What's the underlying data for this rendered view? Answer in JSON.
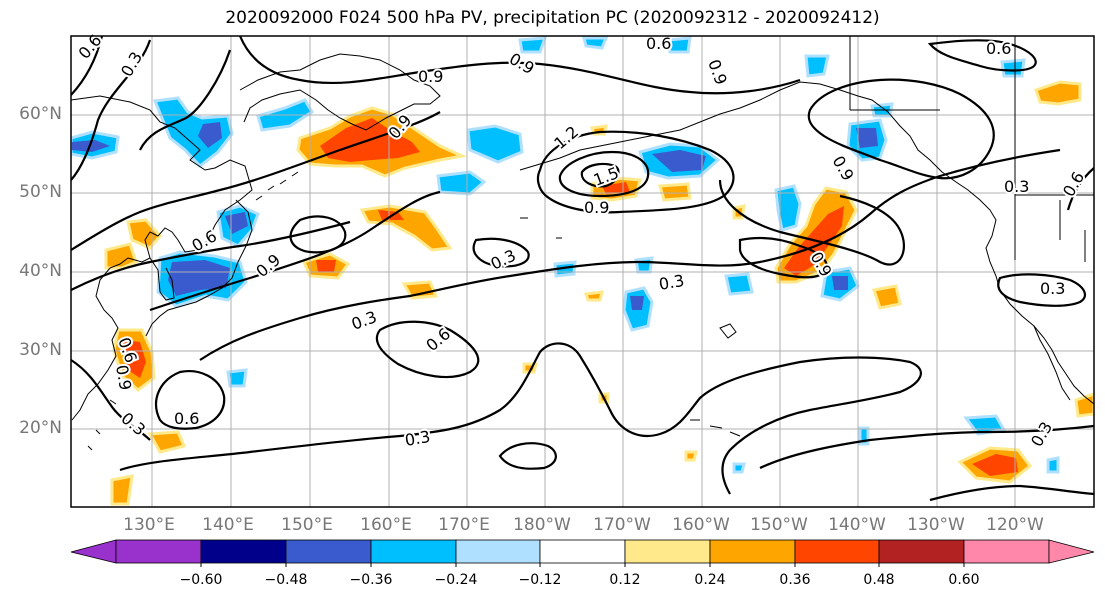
{
  "title": "2020092000 F024 500 hPa PV, precipitation PC (2020092312 - 2020092412)",
  "lat_ticks": [
    "60°N",
    "50°N",
    "40°N",
    "30°N",
    "20°N"
  ],
  "lon_ticks": [
    "130°E",
    "140°E",
    "150°E",
    "160°E",
    "170°E",
    "180°W",
    "170°W",
    "160°W",
    "150°W",
    "140°W",
    "130°W",
    "120°W"
  ],
  "contour_labels": [
    "0.6",
    "0.3",
    "0.9",
    "0.9",
    "0.6",
    "0.9",
    "0.6",
    "0.9",
    "1.2",
    "1.5",
    "0.9",
    "0.9",
    "0.9",
    "0.3",
    "0.6",
    "0.6",
    "0.9",
    "0.3",
    "0.3",
    "0.3",
    "0.6",
    "0.9",
    "0.6",
    "0.3",
    "0.6",
    "0.3",
    "0.3",
    "0.3"
  ],
  "colorbar": {
    "ticks": [
      "−0.60",
      "−0.48",
      "−0.36",
      "−0.24",
      "−0.12",
      "0.12",
      "0.24",
      "0.36",
      "0.48",
      "0.60"
    ],
    "colors": [
      "#9932cc",
      "#00008b",
      "#3a5bcd",
      "#00bfff",
      "#b0e0ff",
      "#ffffff",
      "#ffe98a",
      "#ffa500",
      "#ff4500",
      "#b22222",
      "#ff88aa"
    ]
  },
  "colors": {
    "neg_light": "#b0e0ff",
    "neg_mid": "#00bfff",
    "neg_strong": "#3a5bcd",
    "neg_deep": "#00008b",
    "pos_light": "#ffe98a",
    "pos_mid": "#ffa500",
    "pos_strong": "#ff4500",
    "pos_deep": "#b22222",
    "grid": "#b0b0b0",
    "contour": "#000000",
    "coast": "#000000"
  }
}
